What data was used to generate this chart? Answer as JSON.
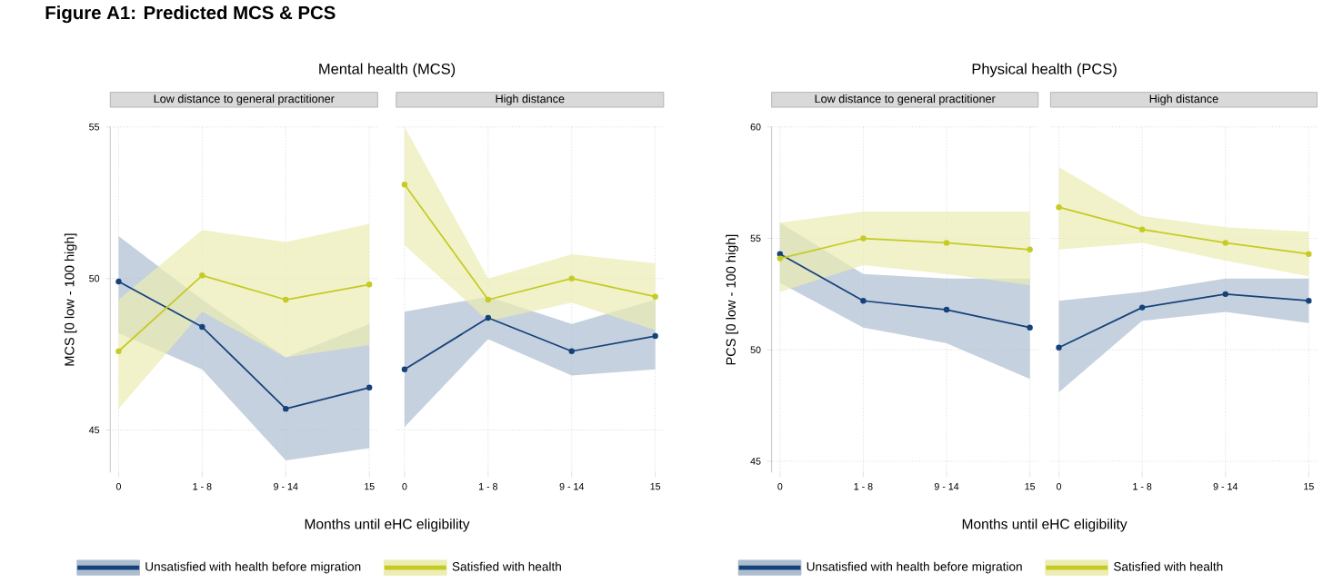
{
  "chart_data": [
    {
      "type": "line",
      "title": "Mental health (MCS)",
      "subtitle": "Low distance to general practitioner",
      "xlabel": "Months until eHC eligibility",
      "ylabel": "MCS [0 low - 100 high]",
      "annotations": [
        "Figure A1: Predicted MCS & PCS"
      ],
      "categories": [
        "0",
        "1 - 8",
        "9 - 14",
        "15"
      ],
      "ylim": [
        43.6,
        55
      ],
      "yticks": [
        45,
        50,
        55
      ],
      "grid": true,
      "marker": "circle",
      "legend": "bottom",
      "series": [
        {
          "name": "Unsatisfied with health before migration",
          "color": "#15427a",
          "values": [
            49.9,
            48.4,
            45.7,
            46.4
          ],
          "lower": [
            48.2,
            47.0,
            44.0,
            44.4
          ],
          "upper": [
            51.4,
            49.3,
            47.4,
            48.5
          ]
        },
        {
          "name": "Satisfied with health",
          "color": "#c5cb24",
          "values": [
            47.6,
            50.1,
            49.3,
            49.8
          ],
          "lower": [
            45.7,
            48.9,
            47.4,
            47.8
          ],
          "upper": [
            49.3,
            51.6,
            51.2,
            51.8
          ]
        }
      ]
    },
    {
      "type": "line",
      "subtitle": "High distance",
      "categories": [
        "0",
        "1 - 8",
        "9 - 14",
        "15"
      ],
      "ylim": [
        43.6,
        55
      ],
      "yticks": [
        45,
        50,
        55
      ],
      "tick_labels": "x",
      "grid": true,
      "marker": "circle",
      "series": [
        {
          "color": "#15427a",
          "values": [
            47.0,
            48.7,
            47.6,
            48.1
          ],
          "lower": [
            45.1,
            48.0,
            46.8,
            47.0
          ],
          "upper": [
            48.9,
            49.4,
            48.5,
            49.3
          ]
        },
        {
          "color": "#c5cb24",
          "values": [
            53.1,
            49.3,
            50.0,
            49.4
          ],
          "lower": [
            51.1,
            48.6,
            49.2,
            48.3
          ],
          "upper": [
            55.0,
            50.0,
            50.8,
            50.5
          ]
        }
      ]
    },
    {
      "type": "line",
      "title": "Physical health (PCS)",
      "subtitle": "Low distance to general practitioner",
      "xlabel": "Months until eHC eligibility",
      "ylabel": "PCS [0 low - 100 high]",
      "categories": [
        "0",
        "1 - 8",
        "9 - 14",
        "15"
      ],
      "ylim": [
        44.5,
        60
      ],
      "yticks": [
        45,
        50,
        55,
        60
      ],
      "grid": true,
      "marker": "circle",
      "legend": "bottom",
      "series": [
        {
          "name": "Unsatisfied with health before migration",
          "color": "#15427a",
          "values": [
            54.3,
            52.2,
            51.8,
            51.0
          ],
          "lower": [
            53.0,
            51.0,
            50.3,
            48.7
          ],
          "upper": [
            55.7,
            53.4,
            53.2,
            53.2
          ]
        },
        {
          "name": "Satisfied with health",
          "color": "#c5cb24",
          "values": [
            54.1,
            55.0,
            54.8,
            54.5
          ],
          "lower": [
            52.6,
            53.8,
            53.4,
            52.9
          ],
          "upper": [
            55.7,
            56.2,
            56.2,
            56.2
          ]
        }
      ]
    },
    {
      "type": "line",
      "subtitle": "High distance",
      "categories": [
        "0",
        "1 - 8",
        "9 - 14",
        "15"
      ],
      "ylim": [
        44.5,
        60
      ],
      "yticks": [
        45,
        50,
        55,
        60
      ],
      "tick_labels": "x",
      "grid": true,
      "marker": "circle",
      "series": [
        {
          "color": "#15427a",
          "values": [
            50.1,
            51.9,
            52.5,
            52.2
          ],
          "lower": [
            48.1,
            51.3,
            51.7,
            51.2
          ],
          "upper": [
            52.2,
            52.6,
            53.2,
            53.2
          ]
        },
        {
          "color": "#c5cb24",
          "values": [
            56.4,
            55.4,
            54.8,
            54.3
          ],
          "lower": [
            54.5,
            54.8,
            54.0,
            53.3
          ],
          "upper": [
            58.2,
            56.0,
            55.5,
            55.3
          ]
        }
      ]
    }
  ]
}
